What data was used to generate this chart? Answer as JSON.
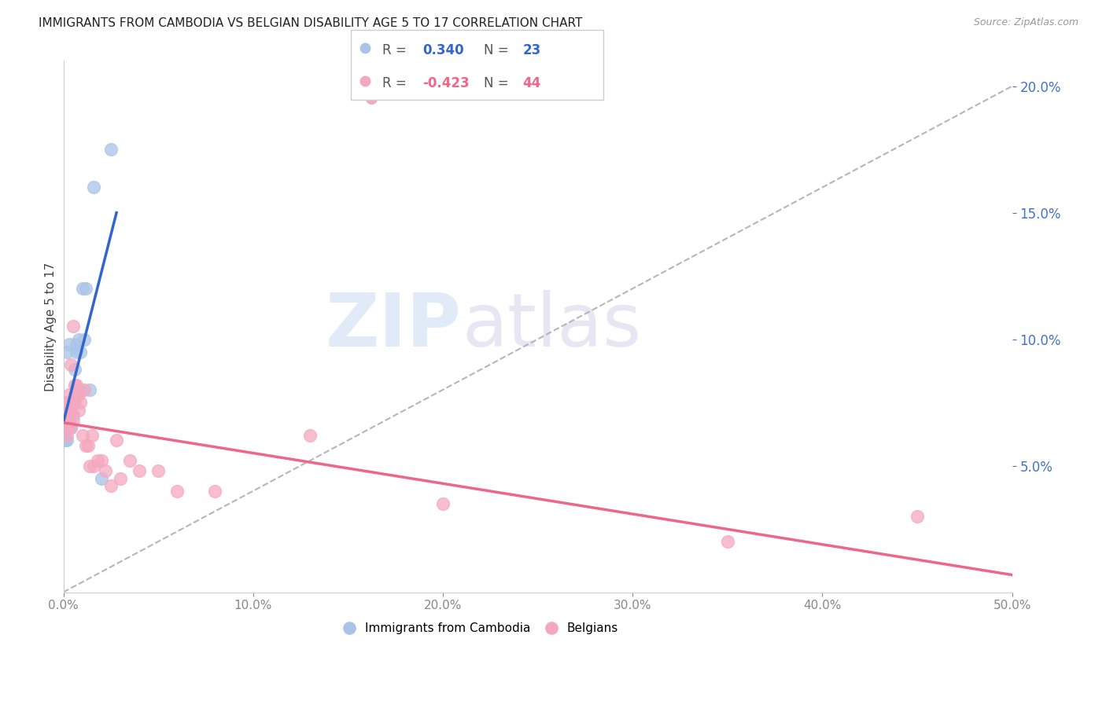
{
  "title": "IMMIGRANTS FROM CAMBODIA VS BELGIAN DISABILITY AGE 5 TO 17 CORRELATION CHART",
  "source": "Source: ZipAtlas.com",
  "ylabel": "Disability Age 5 to 17",
  "r_cambodia": 0.34,
  "n_cambodia": 23,
  "r_belgian": -0.423,
  "n_belgian": 44,
  "xlim": [
    0.0,
    0.5
  ],
  "ylim": [
    0.0,
    0.21
  ],
  "xticks": [
    0.0,
    0.1,
    0.2,
    0.3,
    0.4,
    0.5
  ],
  "yticks_right": [
    0.05,
    0.1,
    0.15,
    0.2
  ],
  "color_cambodia": "#aac4e8",
  "color_belgian": "#f4a8c0",
  "trendline_cambodia": "#3366cc",
  "trendline_belgian": "#ee6688",
  "background_color": "#ffffff",
  "grid_color": "#dddddd",
  "watermark_zip": "ZIP",
  "watermark_atlas": "atlas",
  "legend_label_cambodia": "Immigrants from Cambodia",
  "legend_label_belgian": "Belgians",
  "cambodia_x": [
    0.001,
    0.001,
    0.002,
    0.002,
    0.003,
    0.003,
    0.004,
    0.004,
    0.005,
    0.006,
    0.006,
    0.007,
    0.007,
    0.008,
    0.008,
    0.009,
    0.01,
    0.011,
    0.012,
    0.014,
    0.016,
    0.02,
    0.025
  ],
  "cambodia_y": [
    0.066,
    0.06,
    0.095,
    0.06,
    0.065,
    0.098,
    0.065,
    0.075,
    0.07,
    0.088,
    0.078,
    0.095,
    0.098,
    0.08,
    0.1,
    0.095,
    0.12,
    0.1,
    0.12,
    0.08,
    0.16,
    0.045,
    0.175
  ],
  "belgian_x": [
    0.001,
    0.001,
    0.001,
    0.002,
    0.002,
    0.002,
    0.003,
    0.003,
    0.003,
    0.004,
    0.004,
    0.004,
    0.005,
    0.005,
    0.005,
    0.006,
    0.006,
    0.007,
    0.007,
    0.008,
    0.008,
    0.009,
    0.01,
    0.011,
    0.012,
    0.013,
    0.014,
    0.015,
    0.016,
    0.018,
    0.02,
    0.022,
    0.025,
    0.028,
    0.03,
    0.035,
    0.04,
    0.05,
    0.06,
    0.08,
    0.13,
    0.2,
    0.35,
    0.45
  ],
  "belgian_y": [
    0.072,
    0.068,
    0.065,
    0.075,
    0.07,
    0.062,
    0.078,
    0.072,
    0.068,
    0.072,
    0.09,
    0.065,
    0.105,
    0.075,
    0.068,
    0.082,
    0.075,
    0.082,
    0.078,
    0.078,
    0.072,
    0.075,
    0.062,
    0.08,
    0.058,
    0.058,
    0.05,
    0.062,
    0.05,
    0.052,
    0.052,
    0.048,
    0.042,
    0.06,
    0.045,
    0.052,
    0.048,
    0.048,
    0.04,
    0.04,
    0.062,
    0.035,
    0.02,
    0.03
  ],
  "title_fontsize": 11,
  "axis_label_fontsize": 11,
  "tick_fontsize": 11,
  "right_tick_color": "#4472c4",
  "bottom_tick_color": "#888888"
}
